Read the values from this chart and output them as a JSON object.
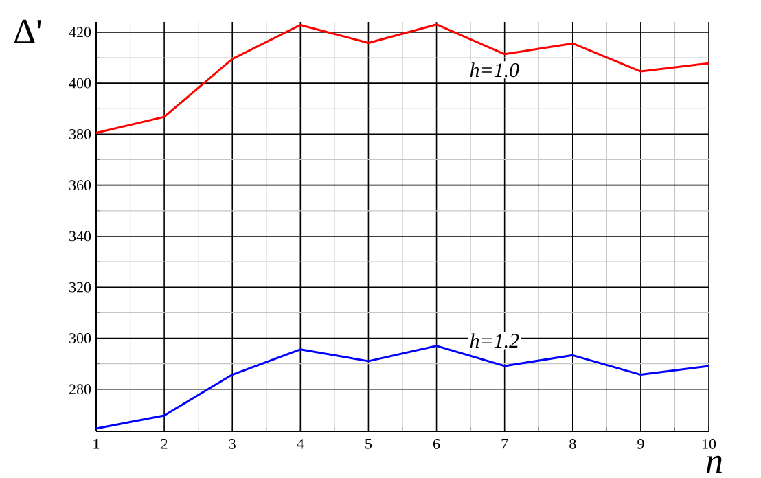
{
  "chart_data": {
    "type": "line",
    "xlabel": "n",
    "ylabel": "Δ'",
    "x": [
      1,
      2,
      3,
      4,
      5,
      6,
      7,
      8,
      9,
      10
    ],
    "series": [
      {
        "name": "*h*=1.0",
        "color": "#ff0000",
        "values": [
          380.5,
          386.8,
          409.5,
          422.8,
          415.8,
          423,
          411.4,
          415.6,
          404.6,
          407.8
        ]
      },
      {
        "name": "*h*=1.2",
        "color": "#0000ff",
        "values": [
          264.6,
          269.7,
          285.7,
          295.6,
          291.0,
          297.0,
          289.1,
          293.3,
          285.7,
          289.1
        ]
      }
    ],
    "xlim": [
      1,
      10
    ],
    "ylim": [
      263.5,
      424
    ],
    "xticks": [
      1,
      2,
      3,
      4,
      5,
      6,
      7,
      8,
      9,
      10
    ],
    "yticks": [
      280,
      300,
      320,
      340,
      360,
      380,
      400,
      420
    ],
    "grid": true,
    "marker": "none",
    "line_style": "solid"
  }
}
